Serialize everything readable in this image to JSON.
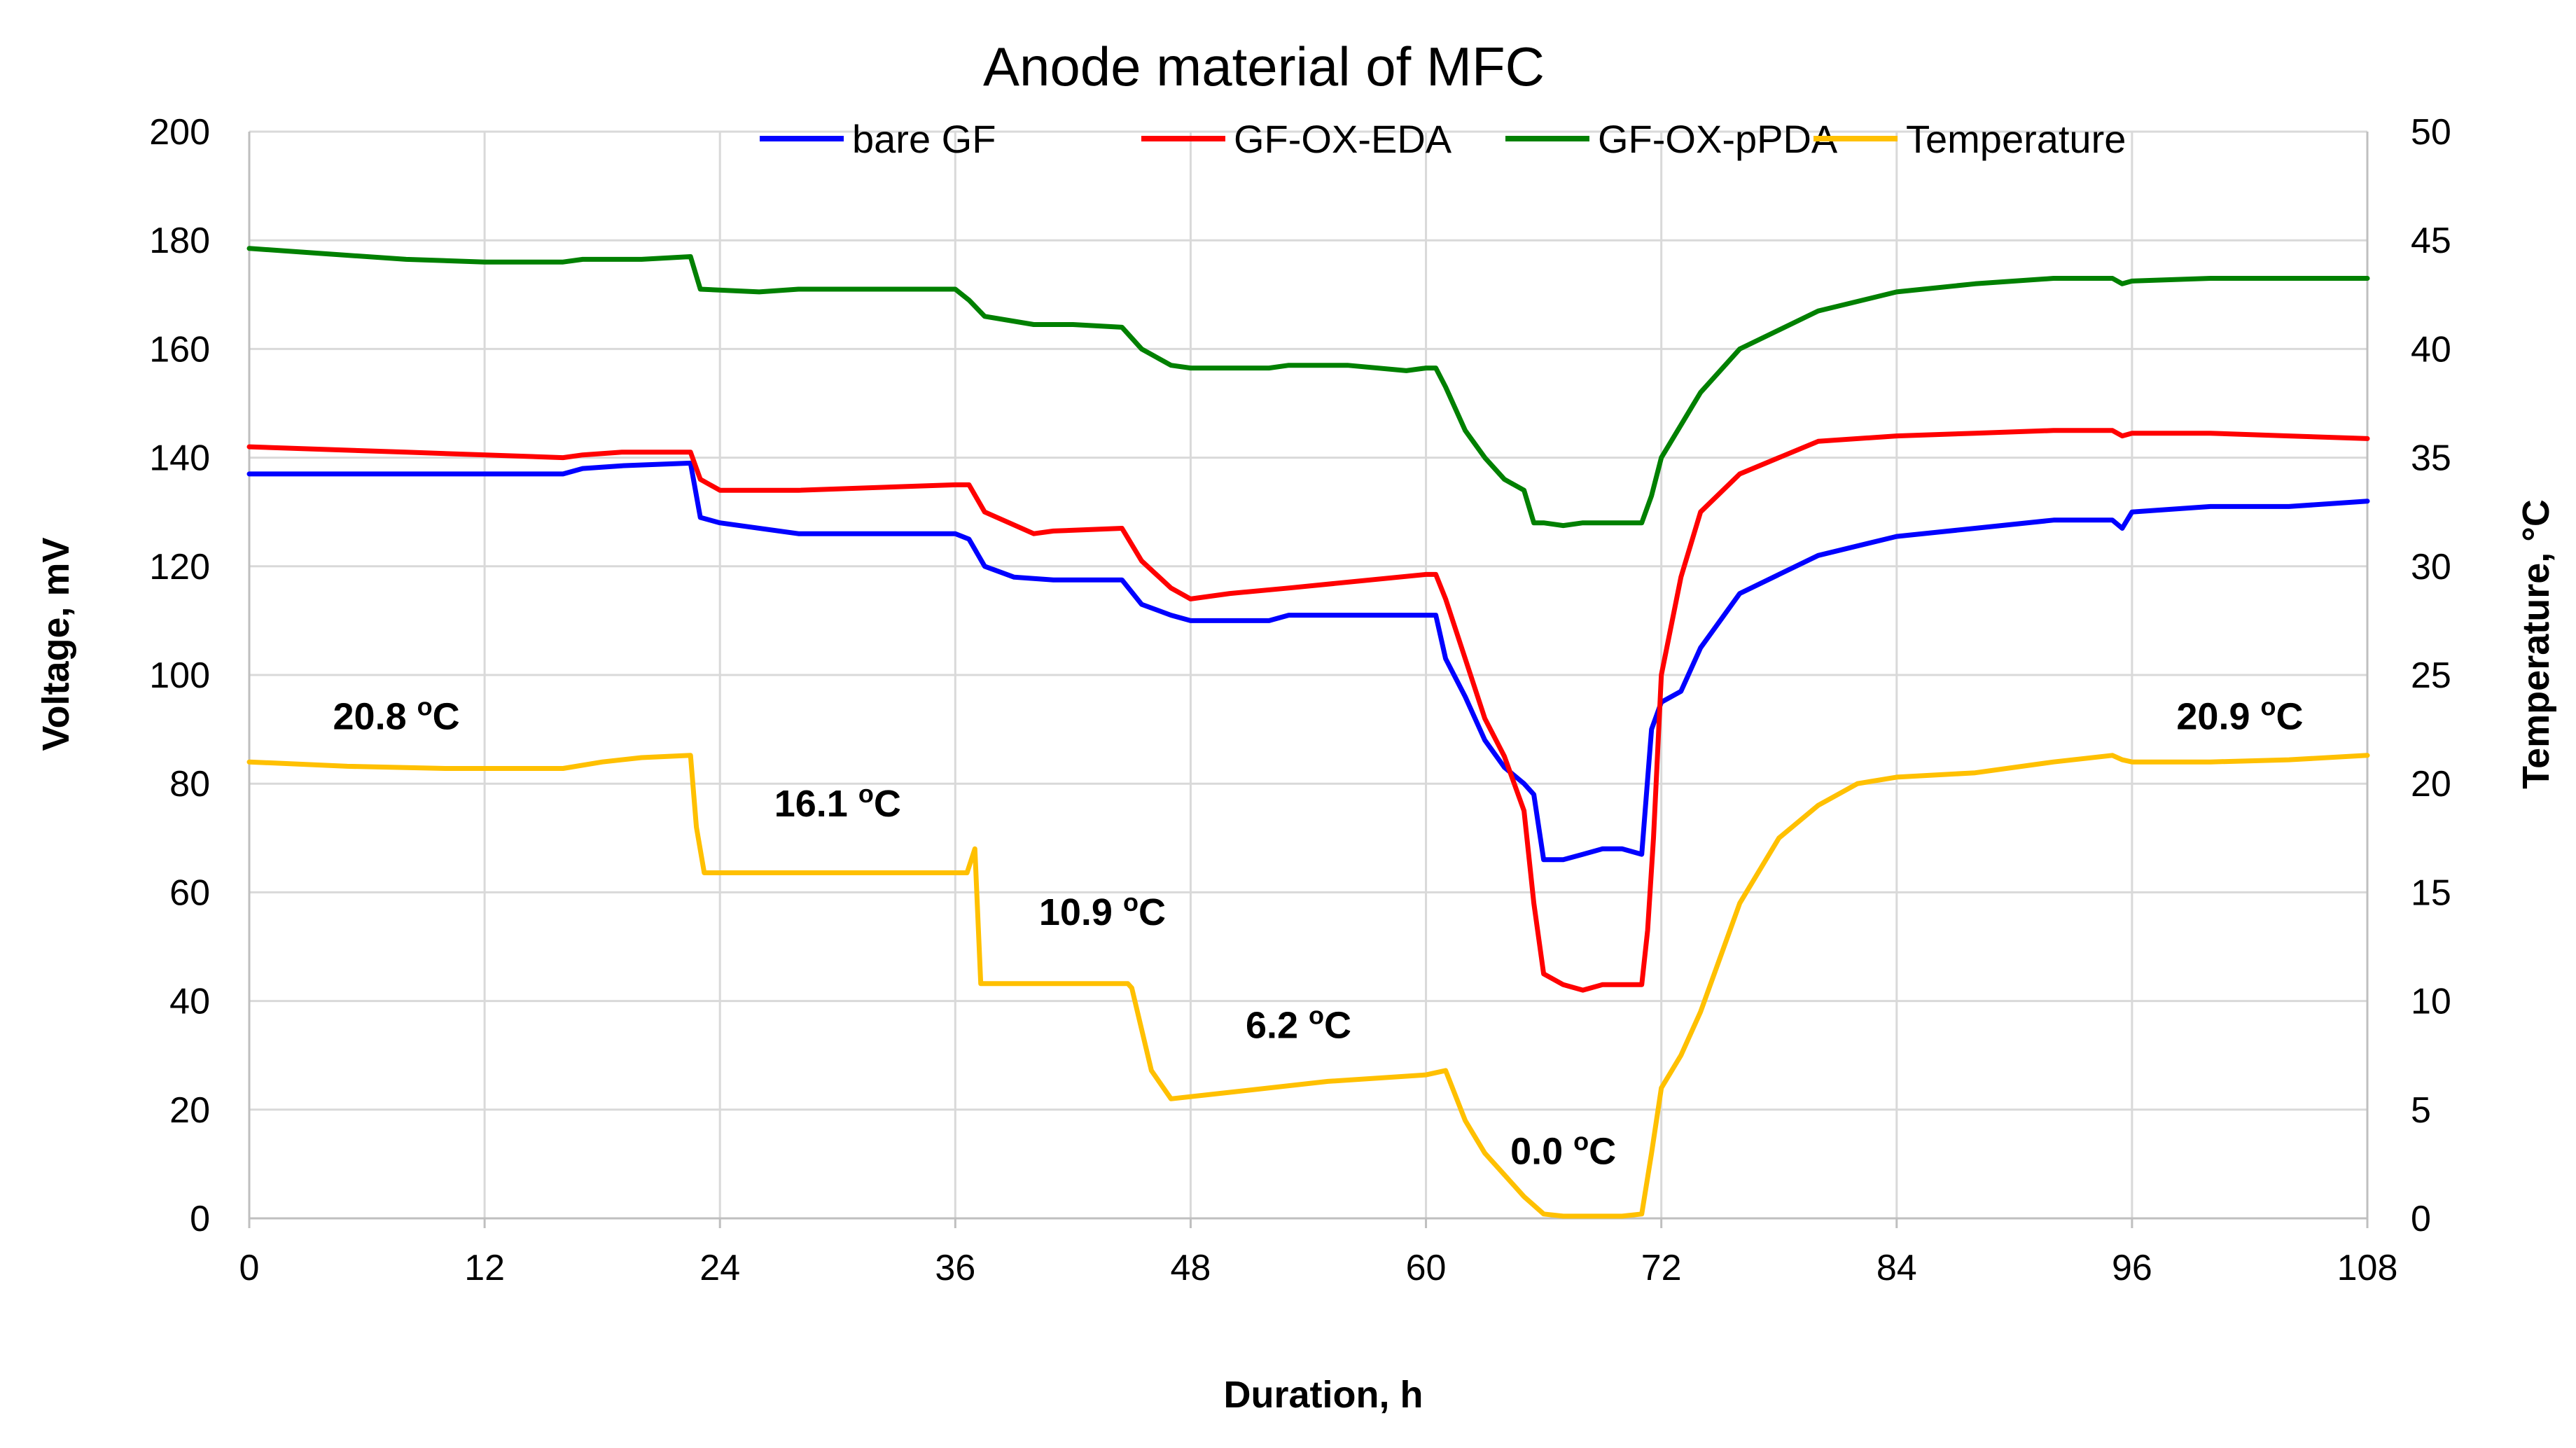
{
  "chart_data": {
    "type": "line",
    "title": "Anode material of MFC",
    "xlabel": "Duration, h",
    "ylabel": "Voltage, mV",
    "y2label": "Temperature, °C",
    "xlim": [
      0,
      108
    ],
    "ylim": [
      0,
      200
    ],
    "y2lim": [
      0,
      50
    ],
    "x_ticks": [
      0,
      12,
      24,
      36,
      48,
      60,
      72,
      84,
      96,
      108
    ],
    "y_ticks": [
      0,
      20,
      40,
      60,
      80,
      100,
      120,
      140,
      160,
      180,
      200
    ],
    "y2_ticks": [
      0,
      5,
      10,
      15,
      20,
      25,
      30,
      35,
      40,
      45,
      50
    ],
    "grid": true,
    "legend_position": "top",
    "series": [
      {
        "name": "bare GF",
        "axis": "left",
        "color": "#0000ff",
        "x": [
          0,
          8,
          16,
          17,
          19,
          22.5,
          23,
          24,
          28,
          36,
          36.7,
          37.5,
          39,
          41,
          44.5,
          45.5,
          47,
          48,
          52,
          53,
          60,
          60.5,
          61,
          62,
          63,
          64,
          65,
          65.5,
          66,
          67,
          68,
          69,
          70,
          71,
          71.5,
          72,
          73,
          74,
          76,
          80,
          84,
          88,
          92,
          95,
          95.5,
          96,
          100,
          104,
          108
        ],
        "y": [
          137,
          137,
          137,
          138,
          138.5,
          139,
          129,
          128,
          126,
          126,
          125,
          120,
          118,
          117.5,
          117.5,
          113,
          111,
          110,
          110,
          111,
          111,
          111,
          103,
          96,
          88,
          83,
          80,
          78,
          66,
          66,
          67,
          68,
          68,
          67,
          90,
          95,
          97,
          105,
          115,
          122,
          125.5,
          127,
          128.5,
          128.5,
          127,
          130,
          131,
          131,
          132
        ]
      },
      {
        "name": "GF-OX-EDA",
        "axis": "left",
        "color": "#ff0000",
        "x": [
          0,
          8,
          16,
          17,
          19,
          22.5,
          23,
          24,
          28,
          36,
          36.7,
          37.5,
          40,
          41,
          44.5,
          45.5,
          47,
          48,
          50,
          53,
          60,
          60.5,
          61,
          62,
          63,
          64,
          64.5,
          65,
          65.5,
          66,
          67,
          68,
          69,
          70,
          71,
          71.3,
          71.6,
          72,
          73,
          74,
          76,
          80,
          84,
          88,
          92,
          95,
          95.5,
          96,
          100,
          104,
          108
        ],
        "y": [
          142,
          141,
          140,
          140.5,
          141,
          141,
          136,
          134,
          134,
          135,
          135,
          130,
          126,
          126.5,
          127,
          121,
          116,
          114,
          115,
          116,
          118.5,
          118.5,
          114,
          103,
          92,
          85,
          80,
          75,
          58,
          45,
          43,
          42,
          43,
          43,
          43,
          53,
          70,
          100,
          118,
          130,
          137,
          143,
          144,
          144.5,
          145,
          145,
          144,
          144.5,
          144.5,
          144,
          143.5
        ]
      },
      {
        "name": "GF-OX-pPDA",
        "axis": "left",
        "color": "#008000",
        "x": [
          0,
          4,
          8,
          12,
          16,
          17,
          20,
          22.5,
          23,
          26,
          28,
          32,
          36,
          36.7,
          37.5,
          40,
          42,
          44.5,
          45.5,
          47,
          48,
          52,
          53,
          56,
          59,
          60,
          60.5,
          61,
          62,
          63,
          64,
          65,
          65.5,
          66,
          67,
          68,
          69,
          70,
          71,
          71.5,
          72,
          74,
          76,
          80,
          84,
          88,
          92,
          95,
          95.5,
          96,
          100,
          104,
          108
        ],
        "y": [
          178.5,
          177.5,
          176.5,
          176,
          176,
          176.5,
          176.5,
          177,
          171,
          170.5,
          171,
          171,
          171,
          169,
          166,
          164.5,
          164.5,
          164,
          160,
          157,
          156.5,
          156.5,
          157,
          157,
          156,
          156.5,
          156.5,
          153,
          145,
          140,
          136,
          134,
          128,
          128,
          127.5,
          128,
          128,
          128,
          128,
          133,
          140,
          152,
          160,
          167,
          170.5,
          172,
          173,
          173,
          172,
          172.5,
          173,
          173,
          173
        ]
      },
      {
        "name": "Temperature",
        "axis": "right",
        "color": "#ffc000",
        "x": [
          0,
          5,
          10,
          16,
          18,
          20,
          22.5,
          22.8,
          23.2,
          36.6,
          37,
          37.3,
          44.8,
          45,
          46,
          47,
          50,
          55,
          60,
          61,
          62,
          63,
          64,
          65,
          66,
          67,
          68,
          69,
          70,
          71,
          71.5,
          72,
          73,
          74,
          75,
          76,
          78,
          80,
          82,
          84,
          88,
          92,
          95,
          95.5,
          96,
          100,
          104,
          108
        ],
        "y": [
          21,
          20.8,
          20.7,
          20.7,
          21,
          21.2,
          21.3,
          18,
          15.9,
          15.9,
          17,
          10.8,
          10.8,
          10.6,
          6.8,
          5.5,
          5.8,
          6.3,
          6.6,
          6.8,
          4.5,
          3,
          2,
          1,
          0.2,
          0.1,
          0.1,
          0.1,
          0.1,
          0.2,
          3,
          6,
          7.5,
          9.5,
          12,
          14.5,
          17.5,
          19,
          20,
          20.3,
          20.5,
          21,
          21.3,
          21.1,
          21,
          21,
          21.1,
          21.3
        ]
      }
    ],
    "annotations": [
      {
        "text": "20.8 °C",
        "x": 7.5,
        "y2": 22.5
      },
      {
        "text": "16.1 °C",
        "x": 30,
        "y2": 18.5
      },
      {
        "text": "10.9 °C",
        "x": 43.5,
        "y2": 13.5
      },
      {
        "text": "6.2 °C",
        "x": 53.5,
        "y2": 8.3
      },
      {
        "text": "0.0 °C",
        "x": 67,
        "y2": 2.5
      },
      {
        "text": "20.9 °C",
        "x": 101.5,
        "y2": 22.5
      }
    ]
  }
}
